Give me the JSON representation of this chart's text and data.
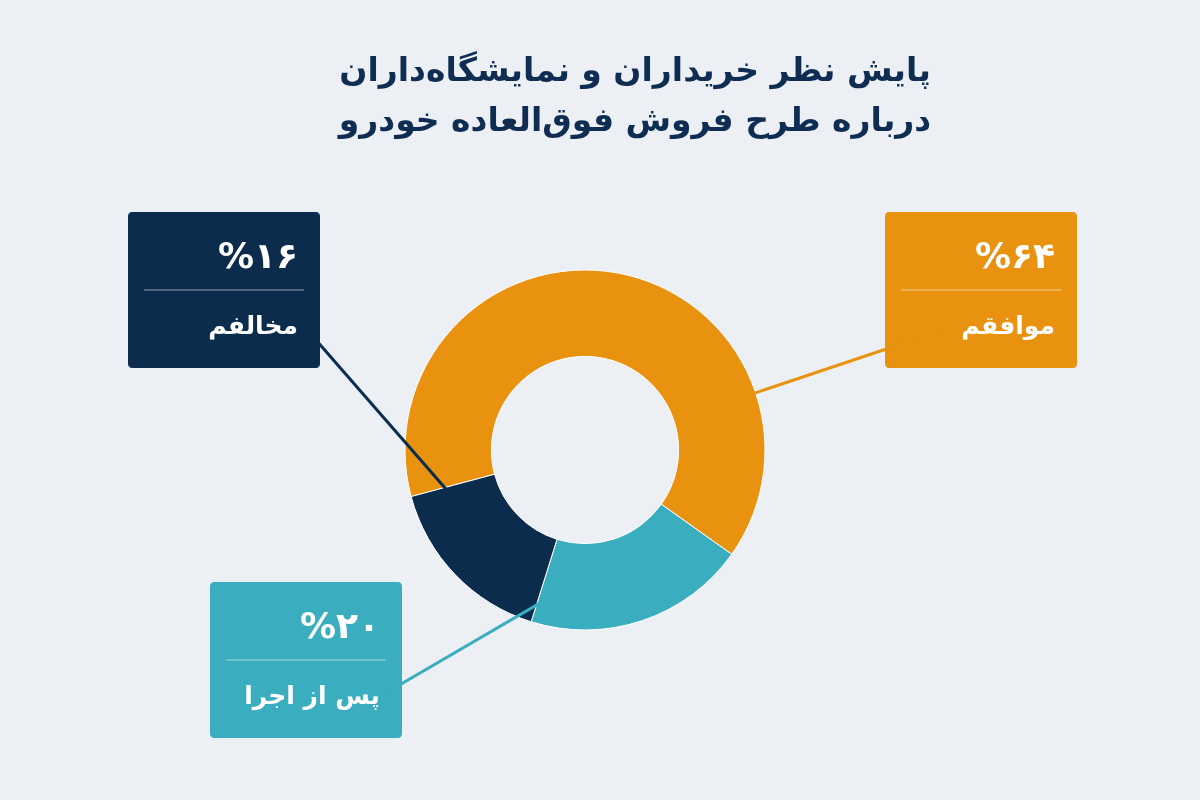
{
  "chart_data": {
    "type": "donut",
    "title": "پایش نظر خریداران و نمایشگاه‌داران\nدرباره طرح فروش فوق‌العاده خودرو",
    "categories": [
      "موافقم",
      "پس از اجرا",
      "مخالفم"
    ],
    "values": [
      64,
      20,
      16
    ],
    "value_labels": [
      "%۶۴",
      "%۲۰",
      "%۱۶"
    ],
    "colors": [
      "#e8920f",
      "#3aaebf",
      "#0c2c4e"
    ]
  }
}
